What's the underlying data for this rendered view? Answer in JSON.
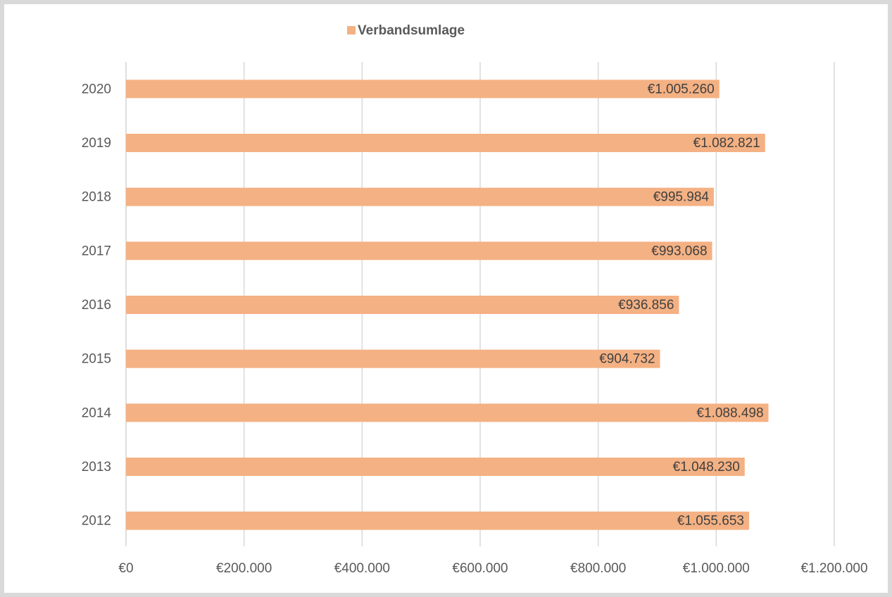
{
  "chart_data": {
    "type": "bar",
    "orientation": "horizontal",
    "legend": "top",
    "series": [
      {
        "name": "Verbandsumlage",
        "color": "#f4b183",
        "values": [
          1055653,
          1048230,
          1088498,
          904732,
          936856,
          993068,
          995984,
          1082821,
          1005260
        ],
        "value_labels": [
          "€1.055.653",
          "€1.048.230",
          "€1.088.498",
          "€904.732",
          "€936.856",
          "€993.068",
          "€995.984",
          "€1.082.821",
          "€1.005.260"
        ]
      }
    ],
    "categories": [
      "2012",
      "2013",
      "2014",
      "2015",
      "2016",
      "2017",
      "2018",
      "2019",
      "2020"
    ],
    "xlim": [
      0,
      1200000
    ],
    "xticks": [
      {
        "value": 0,
        "label": "€0"
      },
      {
        "value": 200000,
        "label": "€200.000"
      },
      {
        "value": 400000,
        "label": "€400.000"
      },
      {
        "value": 600000,
        "label": "€600.000"
      },
      {
        "value": 800000,
        "label": "€800.000"
      },
      {
        "value": 1000000,
        "label": "€1.000.000"
      },
      {
        "value": 1200000,
        "label": "€1.200.000"
      }
    ],
    "grid": true
  }
}
